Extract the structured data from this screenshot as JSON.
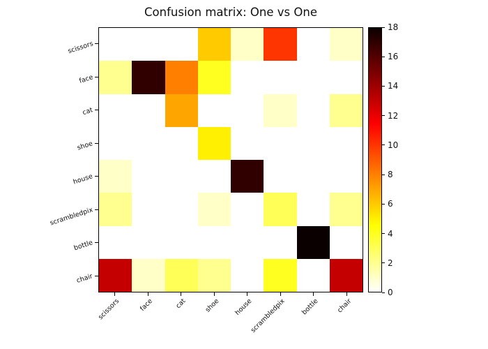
{
  "title": "Confusion matrix: One vs One",
  "chart_data": {
    "type": "heatmap",
    "title": "Confusion matrix: One vs One",
    "x_categories": [
      "scissors",
      "face",
      "cat",
      "shoe",
      "house",
      "scrambledpix",
      "bottle",
      "chair"
    ],
    "y_categories": [
      "scissors",
      "face",
      "cat",
      "shoe",
      "house",
      "scrambledpix",
      "bottle",
      "chair"
    ],
    "matrix": [
      [
        0,
        0,
        0,
        6,
        1,
        10,
        0,
        1
      ],
      [
        2,
        17,
        8,
        4,
        0,
        0,
        0,
        0
      ],
      [
        0,
        0,
        7,
        0,
        0,
        1,
        0,
        2
      ],
      [
        0,
        0,
        0,
        5,
        0,
        0,
        0,
        0
      ],
      [
        1,
        0,
        0,
        0,
        17,
        0,
        0,
        0
      ],
      [
        2,
        0,
        0,
        1,
        0,
        3,
        0,
        2
      ],
      [
        0,
        0,
        0,
        0,
        0,
        0,
        18,
        0
      ],
      [
        13,
        1,
        3,
        2,
        0,
        4,
        0,
        13
      ]
    ],
    "colormap": "hot_r",
    "vmin": 0,
    "vmax": 18,
    "grid": false,
    "colorbar": {
      "position": "right",
      "tick_labels": [
        "0",
        "2",
        "4",
        "6",
        "8",
        "10",
        "12",
        "14",
        "16",
        "18"
      ],
      "tick_values": [
        0,
        2,
        4,
        6,
        8,
        10,
        12,
        14,
        16,
        18
      ]
    },
    "value_colors_reference": {
      "0": "#ffffff",
      "1": "#ffffc7",
      "2": "#ffff8f",
      "3": "#ffff58",
      "4": "#ffff20",
      "5": "#ffef00",
      "6": "#ffca00",
      "7": "#ffa500",
      "8": "#ff8000",
      "10": "#ff3500",
      "13": "#c50000",
      "17": "#300000",
      "18": "#0b0000"
    }
  }
}
